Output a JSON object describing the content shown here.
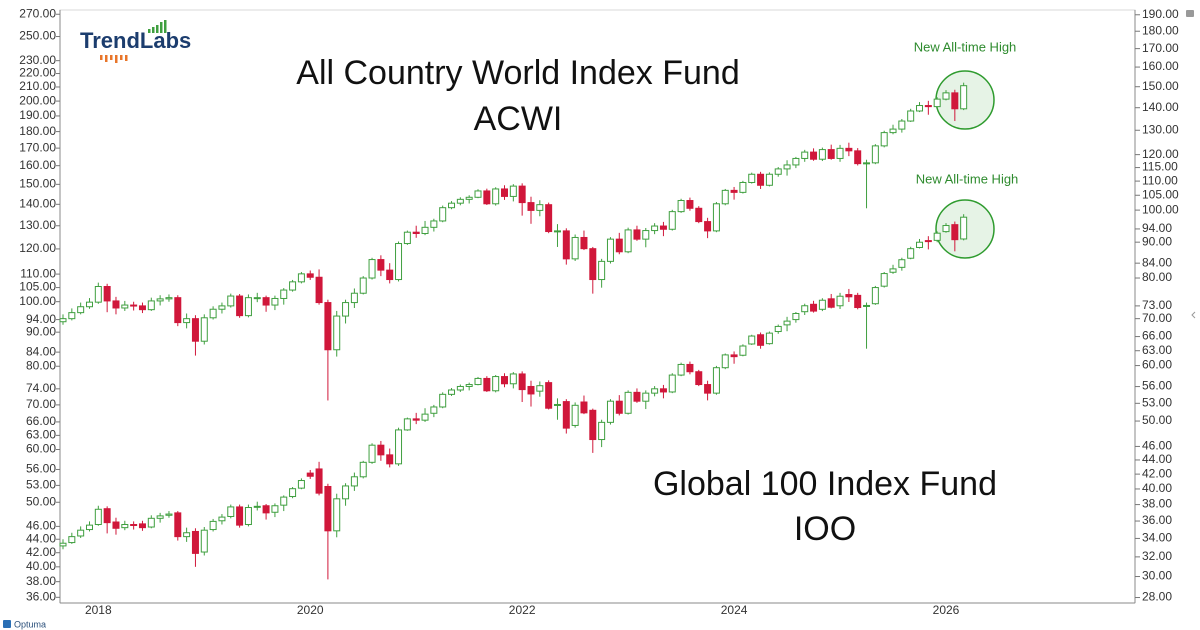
{
  "chart_data": {
    "type": "candlestick",
    "logo": "TrendLabs",
    "source": "Optuma",
    "categories": [
      null,
      null,
      null,
      null,
      "2018",
      null,
      null,
      null,
      null,
      null,
      null,
      null,
      null,
      null,
      null,
      null,
      null,
      null,
      null,
      null,
      null,
      null,
      null,
      null,
      null,
      null,
      null,
      null,
      "2020",
      null,
      null,
      null,
      null,
      null,
      null,
      null,
      null,
      null,
      null,
      null,
      null,
      null,
      null,
      null,
      null,
      null,
      null,
      null,
      null,
      null,
      null,
      null,
      "2022",
      null,
      null,
      null,
      null,
      null,
      null,
      null,
      null,
      null,
      null,
      null,
      null,
      null,
      null,
      null,
      null,
      null,
      null,
      null,
      null,
      null,
      null,
      null,
      "2024",
      null,
      null,
      null,
      null,
      null,
      null,
      null,
      null,
      null,
      null,
      null,
      null,
      null,
      null,
      null,
      null,
      null,
      null,
      null,
      null,
      null,
      null,
      null,
      "2026",
      null,
      null
    ],
    "up_color": "#3f9f3f",
    "down_color": "#d0173a",
    "grid": false,
    "ylog": true,
    "y2log": true,
    "ylim": [
      35.3,
      274
    ],
    "y2lim": [
      27.5,
      193
    ],
    "yticks": [
      {
        "value": 36,
        "label": "36.00"
      },
      {
        "value": 38,
        "label": "38.00"
      },
      {
        "value": 40,
        "label": "40.00"
      },
      {
        "value": 42,
        "label": "42.00"
      },
      {
        "value": 44,
        "label": "44.00"
      },
      {
        "value": 46,
        "label": "46.00"
      },
      {
        "value": 50,
        "label": "50.00"
      },
      {
        "value": 53,
        "label": "53.00"
      },
      {
        "value": 56,
        "label": "56.00"
      },
      {
        "value": 60,
        "label": "60.00"
      },
      {
        "value": 63,
        "label": "63.00"
      },
      {
        "value": 66,
        "label": "66.00"
      },
      {
        "value": 70,
        "label": "70.00"
      },
      {
        "value": 74,
        "label": "74.00"
      },
      {
        "value": 80,
        "label": "80.00"
      },
      {
        "value": 84,
        "label": "84.00"
      },
      {
        "value": 90,
        "label": "90.00"
      },
      {
        "value": 94,
        "label": "94.00"
      },
      {
        "value": 100,
        "label": "100.00"
      },
      {
        "value": 105,
        "label": "105.00"
      },
      {
        "value": 110,
        "label": "110.00"
      },
      {
        "value": 120,
        "label": "120.00"
      },
      {
        "value": 130,
        "label": "130.00"
      },
      {
        "value": 140,
        "label": "140.00"
      },
      {
        "value": 150,
        "label": "150.00"
      },
      {
        "value": 160,
        "label": "160.00"
      },
      {
        "value": 170,
        "label": "170.00"
      },
      {
        "value": 180,
        "label": "180.00"
      },
      {
        "value": 190,
        "label": "190.00"
      },
      {
        "value": 200,
        "label": "200.00"
      },
      {
        "value": 210,
        "label": "210.00"
      },
      {
        "value": 220,
        "label": "220.00"
      },
      {
        "value": 230,
        "label": "230.00"
      },
      {
        "value": 250,
        "label": "250.00"
      },
      {
        "value": 270,
        "label": "270.00"
      }
    ],
    "y2ticks": [
      {
        "value": 28,
        "label": "28.00"
      },
      {
        "value": 30,
        "label": "30.00"
      },
      {
        "value": 32,
        "label": "32.00"
      },
      {
        "value": 34,
        "label": "34.00"
      },
      {
        "value": 36,
        "label": "36.00"
      },
      {
        "value": 38,
        "label": "38.00"
      },
      {
        "value": 40,
        "label": "40.00"
      },
      {
        "value": 42,
        "label": "42.00"
      },
      {
        "value": 44,
        "label": "44.00"
      },
      {
        "value": 46,
        "label": "46.00"
      },
      {
        "value": 50,
        "label": "50.00"
      },
      {
        "value": 53,
        "label": "53.00"
      },
      {
        "value": 56,
        "label": "56.00"
      },
      {
        "value": 60,
        "label": "60.00"
      },
      {
        "value": 63,
        "label": "63.00"
      },
      {
        "value": 66,
        "label": "66.00"
      },
      {
        "value": 70,
        "label": "70.00"
      },
      {
        "value": 73,
        "label": "73.00"
      },
      {
        "value": 80,
        "label": "80.00"
      },
      {
        "value": 84,
        "label": "84.00"
      },
      {
        "value": 90,
        "label": "90.00"
      },
      {
        "value": 94,
        "label": "94.00"
      },
      {
        "value": 100,
        "label": "100.00"
      },
      {
        "value": 105,
        "label": "105.00"
      },
      {
        "value": 110,
        "label": "110.00"
      },
      {
        "value": 115,
        "label": "115.00"
      },
      {
        "value": 120,
        "label": "120.00"
      },
      {
        "value": 130,
        "label": "130.00"
      },
      {
        "value": 140,
        "label": "140.00"
      },
      {
        "value": 150,
        "label": "150.00"
      },
      {
        "value": 160,
        "label": "160.00"
      },
      {
        "value": 170,
        "label": "170.00"
      },
      {
        "value": 180,
        "label": "180.00"
      },
      {
        "value": 190,
        "label": "190.00"
      }
    ],
    "annotations": [
      "New All-time High",
      "New All-time High"
    ],
    "series": [
      {
        "name": "All Country World Index Fund",
        "symbol": "ACWI",
        "axis": "y2",
        "open": [
          69.3,
          70.0,
          71.4,
          72.8,
          73.9,
          77.8,
          74.2,
          72.5,
          73.2,
          73.0,
          72.1,
          74.2,
          74.7,
          75.0,
          69.1,
          70.0,
          65.0,
          70.2,
          72.2,
          73.0,
          75.4,
          70.7,
          75.0,
          75.0,
          73.2,
          74.8,
          76.9,
          79.0,
          81.1,
          80.2,
          73.8,
          63.2,
          70.6,
          73.8,
          76.1,
          80.0,
          85.0,
          82.1,
          79.6,
          89.6,
          93.0,
          92.6,
          94.5,
          96.5,
          100.8,
          102.3,
          103.6,
          104.3,
          106.5,
          102.1,
          107.2,
          104.6,
          108.2,
          102.5,
          99.9,
          101.8,
          93.2,
          93.4,
          85.2,
          91.4,
          88.1,
          79.6,
          84.5,
          90.9,
          87.2,
          93.7,
          90.9,
          93.5,
          94.9,
          93.9,
          99.5,
          103.2,
          100.6,
          96.3,
          93.4,
          102.1,
          106.7,
          106.0,
          109.5,
          112.5,
          108.5,
          112.5,
          114.5,
          116.0,
          118.5,
          121.0,
          118.2,
          122.0,
          118.5,
          122.5,
          121.5,
          116.5,
          116.8,
          123.5,
          129.0,
          130.5,
          134.0,
          138.5,
          141.0,
          140.5,
          144.0,
          147.0,
          139.5
        ],
        "high": [
          71.0,
          72.4,
          73.8,
          74.9,
          78.8,
          78.5,
          75.2,
          74.2,
          74.0,
          73.8,
          75.0,
          75.6,
          75.8,
          75.6,
          71.2,
          70.8,
          71.0,
          72.9,
          73.8,
          76.0,
          75.9,
          75.8,
          76.2,
          75.5,
          75.5,
          77.4,
          79.5,
          81.6,
          82.0,
          82.3,
          74.5,
          71.8,
          74.5,
          77.3,
          80.5,
          85.5,
          86.2,
          84.0,
          90.2,
          93.5,
          95.0,
          96.5,
          97.2,
          101.5,
          103.0,
          104.3,
          105.0,
          107.1,
          107.3,
          107.8,
          108.5,
          108.9,
          109.2,
          104.5,
          103.3,
          102.5,
          95.5,
          94.2,
          92.3,
          93.5,
          88.6,
          85.2,
          91.5,
          92.8,
          94.4,
          95.0,
          94.3,
          95.8,
          96.2,
          100.1,
          103.8,
          104.2,
          101.3,
          97.5,
          102.7,
          107.2,
          107.9,
          110.1,
          113.1,
          113.4,
          113.2,
          115.2,
          117.8,
          119.1,
          121.9,
          122.5,
          122.8,
          124.0,
          123.9,
          124.8,
          122.6,
          118.0,
          124.2,
          129.8,
          132.4,
          134.9,
          139.5,
          142.6,
          143.2,
          144.9,
          148.3,
          148.5,
          152.0
        ],
        "low": [
          68.6,
          69.6,
          71.0,
          72.3,
          73.5,
          71.5,
          71.0,
          71.8,
          71.9,
          71.3,
          71.8,
          73.1,
          74.0,
          68.3,
          67.8,
          62.0,
          64.3,
          69.8,
          71.2,
          72.6,
          70.2,
          70.3,
          73.9,
          71.6,
          72.0,
          73.3,
          76.5,
          78.6,
          79.5,
          73.3,
          53.5,
          61.8,
          68.9,
          72.5,
          75.8,
          79.6,
          80.5,
          78.6,
          79.1,
          89.2,
          91.3,
          92.1,
          93.2,
          96.1,
          100.3,
          101.6,
          102.2,
          104.0,
          101.7,
          101.5,
          103.4,
          102.9,
          98.2,
          95.6,
          98.0,
          92.7,
          88.6,
          83.6,
          84.6,
          87.7,
          76.0,
          77.5,
          83.9,
          86.5,
          86.8,
          90.4,
          88.5,
          92.4,
          91.8,
          93.5,
          99.1,
          99.8,
          95.8,
          91.2,
          93.0,
          101.6,
          103.5,
          105.6,
          109.1,
          107.2,
          108.1,
          111.6,
          112.0,
          114.8,
          117.2,
          117.6,
          117.5,
          118.0,
          117.2,
          119.4,
          115.8,
          100.6,
          116.3,
          122.9,
          128.3,
          129.0,
          133.6,
          138.0,
          136.8,
          139.6,
          143.4,
          134.0,
          138.9
        ],
        "close": [
          70.0,
          71.4,
          72.8,
          73.9,
          77.8,
          74.2,
          72.5,
          73.2,
          73.0,
          72.1,
          74.2,
          74.7,
          75.0,
          69.1,
          70.0,
          65.0,
          70.2,
          72.2,
          73.0,
          75.4,
          70.7,
          75.0,
          75.0,
          73.2,
          74.8,
          76.9,
          79.0,
          81.1,
          80.2,
          73.8,
          63.2,
          70.6,
          73.8,
          76.1,
          80.0,
          85.0,
          82.1,
          79.6,
          89.6,
          93.0,
          92.6,
          94.5,
          96.5,
          100.8,
          102.3,
          103.6,
          104.3,
          106.5,
          102.1,
          107.2,
          104.6,
          108.2,
          102.5,
          99.9,
          101.8,
          93.2,
          93.4,
          85.2,
          91.4,
          88.1,
          79.6,
          84.5,
          90.9,
          87.2,
          93.7,
          90.9,
          93.5,
          94.9,
          93.9,
          99.5,
          103.2,
          100.6,
          96.3,
          93.4,
          102.1,
          106.7,
          106.0,
          109.5,
          112.5,
          108.5,
          112.5,
          114.5,
          116.0,
          118.5,
          121.0,
          118.2,
          122.0,
          118.5,
          122.5,
          121.5,
          116.5,
          116.8,
          123.5,
          129.0,
          130.5,
          134.0,
          138.5,
          141.0,
          140.5,
          144.0,
          147.0,
          139.5,
          150.5
        ]
      },
      {
        "name": "Global 100 Index Fund",
        "symbol": "IOO",
        "axis": "y",
        "open": [
          43.0,
          43.5,
          44.5,
          45.5,
          46.3,
          48.9,
          46.7,
          45.8,
          46.3,
          46.4,
          45.9,
          47.3,
          47.8,
          48.2,
          44.4,
          45.2,
          42.1,
          45.5,
          46.9,
          47.6,
          49.2,
          46.3,
          49.3,
          49.4,
          48.3,
          49.5,
          51.0,
          52.5,
          55.3,
          56.1,
          52.8,
          45.3,
          50.6,
          52.9,
          54.6,
          57.4,
          60.9,
          58.9,
          57.1,
          64.2,
          66.7,
          66.4,
          68.0,
          69.5,
          72.6,
          73.7,
          74.6,
          75.1,
          76.7,
          73.5,
          77.2,
          75.3,
          77.9,
          74.6,
          73.4,
          75.6,
          69.9,
          70.8,
          65.2,
          70.7,
          68.7,
          62.1,
          65.9,
          70.9,
          68.0,
          73.1,
          70.9,
          72.9,
          74.0,
          73.2,
          77.6,
          80.5,
          78.5,
          75.1,
          72.9,
          79.6,
          83.2,
          83.1,
          86.4,
          89.2,
          86.5,
          90.2,
          92.3,
          94.0,
          96.6,
          99.1,
          97.4,
          101.0,
          98.6,
          102.5,
          102.2,
          98.4,
          99.3,
          105.5,
          110.7,
          112.6,
          116.2,
          120.6,
          123.5,
          123.6,
          127.4,
          130.5,
          124.2
        ],
        "high": [
          44.0,
          45.0,
          46.0,
          46.8,
          49.4,
          49.3,
          47.4,
          46.9,
          46.8,
          46.9,
          47.8,
          48.2,
          48.5,
          48.5,
          45.8,
          45.7,
          45.9,
          47.2,
          48.0,
          49.6,
          49.6,
          49.6,
          50.1,
          49.7,
          49.8,
          51.2,
          52.7,
          54.3,
          55.9,
          57.5,
          53.3,
          51.5,
          53.4,
          55.4,
          57.7,
          61.3,
          61.8,
          60.2,
          64.7,
          67.0,
          68.1,
          69.2,
          70.0,
          73.1,
          74.2,
          75.1,
          75.6,
          77.1,
          77.3,
          77.6,
          78.1,
          78.4,
          78.6,
          76.1,
          75.9,
          76.2,
          71.6,
          71.4,
          70.6,
          72.3,
          69.1,
          66.5,
          71.4,
          72.4,
          73.6,
          74.1,
          73.6,
          74.7,
          75.0,
          78.1,
          81.0,
          81.3,
          79.0,
          76.1,
          80.1,
          83.6,
          84.2,
          86.3,
          89.2,
          89.9,
          90.2,
          92.4,
          94.9,
          96.5,
          99.3,
          100.3,
          101.2,
          102.7,
          103.1,
          104.5,
          103.1,
          99.7,
          105.6,
          110.8,
          113.6,
          116.4,
          120.9,
          124.2,
          125.4,
          127.5,
          131.2,
          131.9,
          135.3
        ],
        "low": [
          42.5,
          43.3,
          44.2,
          45.2,
          46.1,
          44.9,
          44.7,
          45.4,
          45.5,
          45.3,
          45.7,
          46.6,
          47.4,
          43.8,
          43.6,
          40.0,
          41.6,
          45.2,
          46.3,
          47.3,
          45.8,
          46.0,
          48.6,
          47.1,
          47.5,
          48.5,
          50.7,
          52.3,
          54.2,
          51.2,
          38.3,
          44.3,
          49.4,
          52.0,
          54.3,
          57.1,
          57.7,
          56.4,
          56.7,
          64.0,
          65.5,
          66.0,
          67.1,
          69.2,
          72.2,
          73.2,
          73.6,
          74.9,
          73.2,
          73.1,
          74.4,
          74.1,
          70.7,
          69.6,
          72.0,
          68.9,
          66.5,
          63.4,
          64.7,
          67.8,
          59.3,
          60.5,
          65.4,
          67.5,
          67.7,
          70.5,
          69.0,
          72.1,
          71.6,
          72.9,
          77.3,
          77.8,
          74.7,
          71.1,
          72.5,
          79.2,
          80.7,
          82.8,
          86.1,
          85.0,
          86.2,
          89.5,
          90.3,
          93.0,
          95.5,
          96.3,
          96.8,
          97.7,
          97.5,
          99.9,
          97.4,
          85.0,
          98.9,
          105.0,
          110.1,
          111.3,
          115.8,
          120.2,
          119.8,
          122.8,
          126.9,
          119.0,
          123.6
        ],
        "close": [
          43.4,
          44.4,
          45.4,
          46.2,
          48.8,
          46.6,
          45.7,
          46.3,
          46.2,
          45.8,
          47.3,
          47.7,
          48.0,
          44.4,
          45.0,
          41.9,
          45.4,
          46.8,
          47.5,
          49.2,
          46.2,
          49.1,
          49.3,
          48.2,
          49.4,
          50.9,
          52.4,
          53.9,
          54.7,
          51.6,
          45.3,
          50.6,
          52.9,
          54.6,
          57.4,
          60.9,
          58.9,
          57.1,
          64.2,
          66.7,
          66.4,
          67.8,
          69.5,
          72.6,
          73.7,
          74.6,
          75.1,
          76.7,
          73.5,
          77.2,
          75.3,
          77.9,
          73.8,
          72.7,
          74.8,
          69.2,
          70.1,
          64.6,
          69.9,
          68.1,
          62.1,
          65.9,
          70.9,
          68.0,
          73.1,
          70.9,
          72.9,
          74.0,
          73.2,
          77.6,
          80.5,
          78.5,
          75.1,
          72.9,
          79.6,
          83.2,
          82.7,
          85.8,
          88.8,
          86.0,
          89.7,
          91.8,
          93.5,
          96.0,
          98.6,
          96.8,
          100.5,
          98.1,
          101.9,
          101.7,
          98.0,
          98.7,
          105.0,
          110.2,
          112.0,
          115.6,
          120.1,
          122.8,
          123.1,
          126.7,
          130.1,
          123.9,
          133.9
        ]
      }
    ]
  }
}
